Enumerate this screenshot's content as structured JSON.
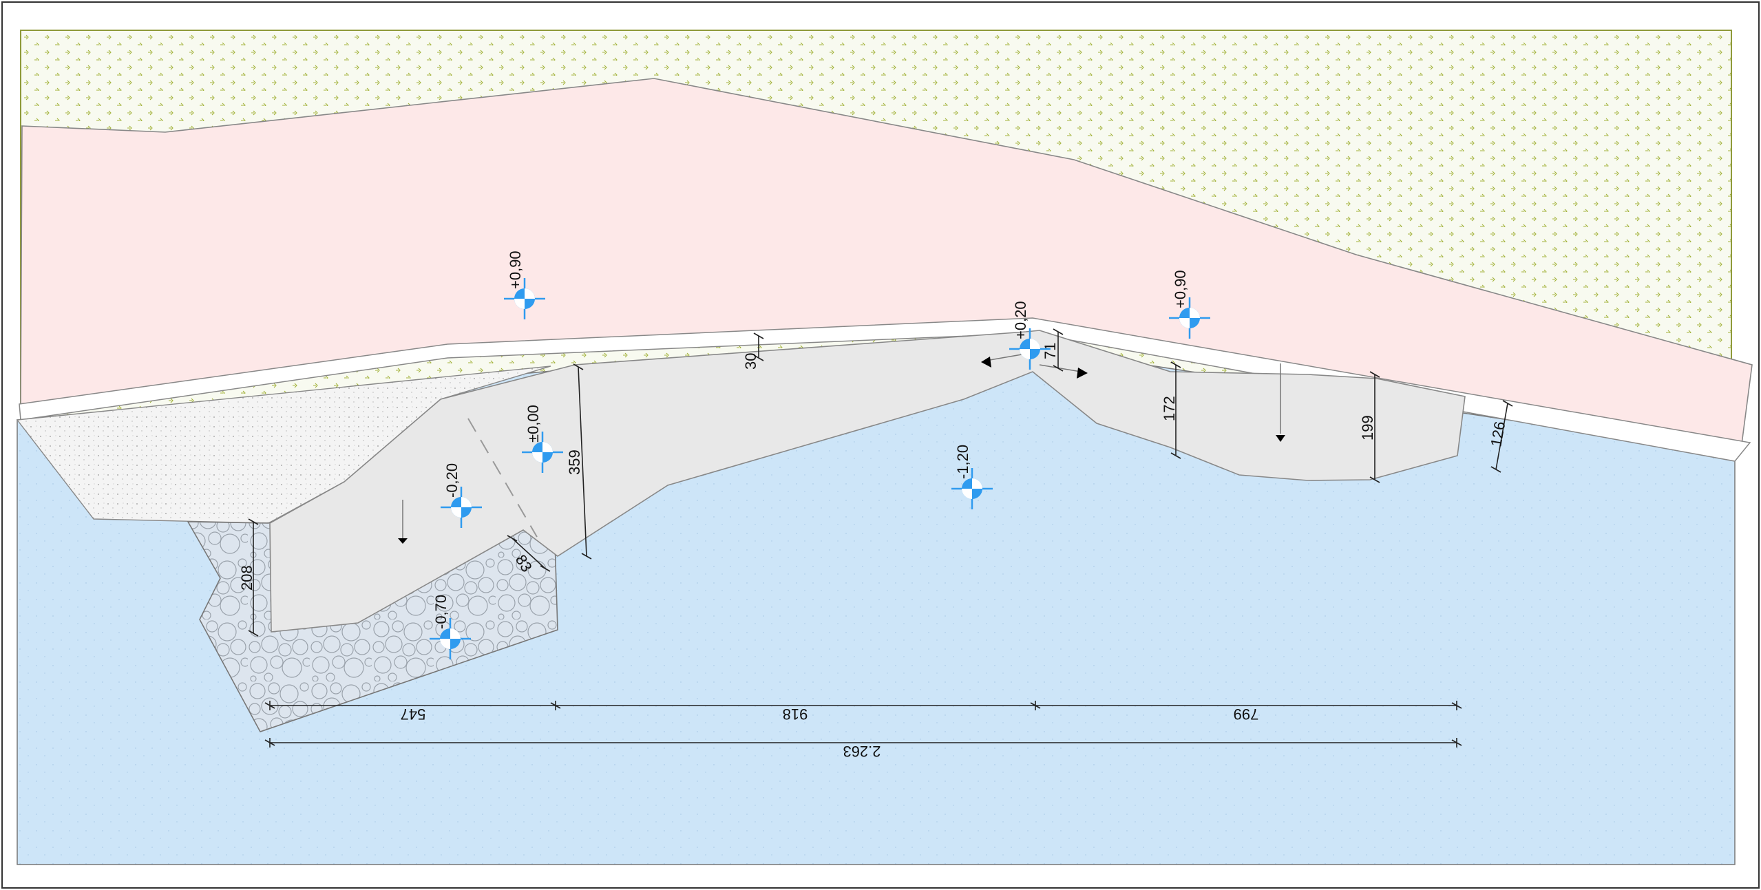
{
  "colors": {
    "hedge_fill": "#f7f9ee",
    "hedge_symbol": "#9fb23a",
    "pink_zone": "#fde8e8",
    "blue_zone": "#cfe6f8",
    "grey_zone": "#e8e8e8",
    "gravel_zone": "#f4f4f4",
    "cobble_zone": "#dfe6ee",
    "level_marker": "#2f9bef"
  },
  "level_markers": [
    {
      "label": "+0,90"
    },
    {
      "label": "+0,90"
    },
    {
      "label": "+0,20"
    },
    {
      "label": "±0,00"
    },
    {
      "label": "-0,20"
    },
    {
      "label": "-1,20"
    },
    {
      "label": "-0,70"
    }
  ],
  "dimensions": {
    "wall_thickness": "30",
    "depth_left": "359",
    "step_height": "71",
    "depth_mid": "172",
    "depth_right": "199",
    "depth_edge": "126",
    "depth_pit": "208",
    "pit_gap": "83",
    "segment_1": "547",
    "segment_2": "918",
    "segment_3": "799",
    "total": "2.263"
  },
  "icons": [
    "slope-arrow-icon",
    "slope-arrow-icon",
    "slope-arrow-icon",
    "slope-arrow-icon",
    "level-marker-icon"
  ]
}
